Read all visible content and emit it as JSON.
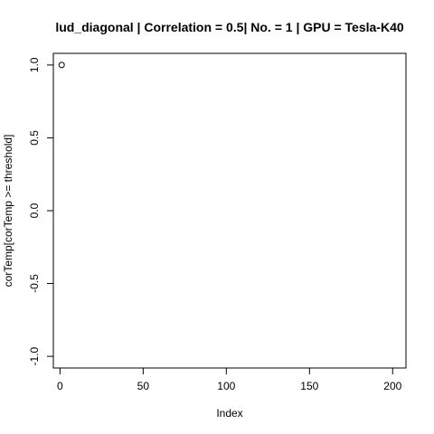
{
  "chart_data": {
    "type": "scatter",
    "title": "lud_diagonal | Correlation = 0.5| No. = 1 | GPU = Tesla-K40",
    "xlabel": "Index",
    "ylabel": "corTemp[corTemp >= threshold]",
    "xlim": [
      -4,
      208
    ],
    "ylim": [
      -1.08,
      1.08
    ],
    "x_ticks": [
      {
        "value": 0,
        "label": "0"
      },
      {
        "value": 50,
        "label": "50"
      },
      {
        "value": 100,
        "label": "100"
      },
      {
        "value": 150,
        "label": "150"
      },
      {
        "value": 200,
        "label": "200"
      }
    ],
    "y_ticks": [
      {
        "value": -1.0,
        "label": "-1.0"
      },
      {
        "value": -0.5,
        "label": "-0.5"
      },
      {
        "value": 0.0,
        "label": "0.0"
      },
      {
        "value": 0.5,
        "label": "0.5"
      },
      {
        "value": 1.0,
        "label": "1.0"
      }
    ],
    "points": [
      {
        "x": 1,
        "y": 1.0
      }
    ],
    "marker": "open-circle",
    "grid": false
  }
}
